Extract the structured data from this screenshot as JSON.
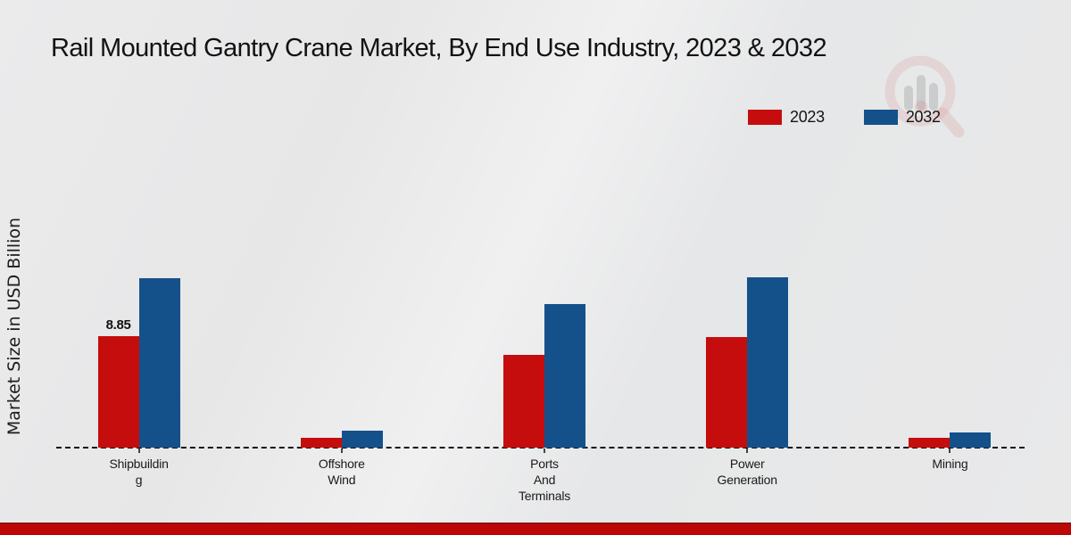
{
  "title": "Rail Mounted Gantry Crane Market, By End Use Industry, 2023 & 2032",
  "ylabel": "Market Size in USD Billion",
  "legend": [
    {
      "label": "2023",
      "color": "#c60d0d"
    },
    {
      "label": "2032",
      "color": "#14518b"
    }
  ],
  "colors": {
    "bar_2023": "#c60d0d",
    "bar_2032": "#14518b",
    "baseline": "#141414",
    "footer_band": "#bf0606",
    "footer_line": "#8a1310",
    "background": "#e9e9ea"
  },
  "chart_data": {
    "type": "bar",
    "categories": [
      "Shipbuilding",
      "Offshore Wind",
      "Ports And Terminals",
      "Power Generation",
      "Mining"
    ],
    "category_label_lines": [
      [
        "Shipbuildin",
        "g"
      ],
      [
        "Offshore",
        "Wind"
      ],
      [
        "Ports",
        "And",
        "Terminals"
      ],
      [
        "Power",
        "Generation"
      ],
      [
        "Mining"
      ]
    ],
    "series": [
      {
        "name": "2023",
        "color": "#c60d0d",
        "values": [
          8.85,
          0.8,
          7.4,
          8.8,
          0.8
        ]
      },
      {
        "name": "2032",
        "color": "#14518b",
        "values": [
          13.45,
          1.35,
          11.4,
          13.5,
          1.2
        ]
      }
    ],
    "bar_labels": [
      {
        "series": 0,
        "category_index": 0,
        "text": "8.85"
      }
    ],
    "xlabel": "",
    "ylabel": "Market Size in USD Billion",
    "ylim": [
      0,
      15
    ],
    "grid": false,
    "legend_position": "top-right",
    "baseline_style": "dashed"
  },
  "watermark_icon": "magnifier-bar-chart-logo"
}
